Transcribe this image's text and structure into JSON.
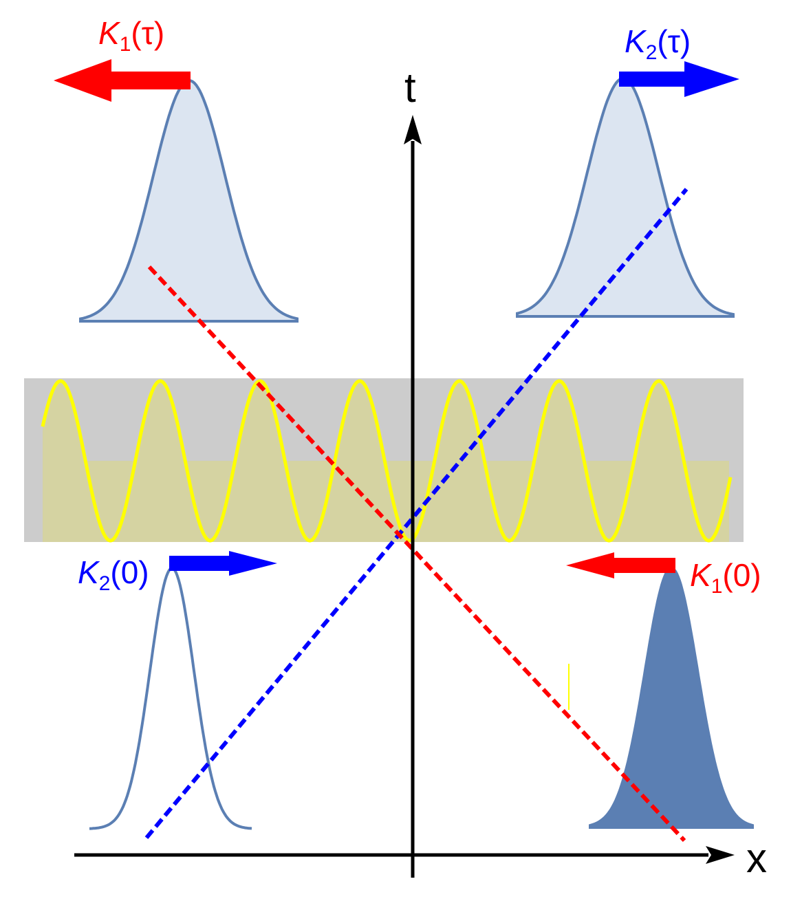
{
  "axes": {
    "x_label": "x",
    "t_label": "t"
  },
  "labels": {
    "k1_tau": {
      "sym": "K",
      "sub": "1",
      "arg": "(τ)"
    },
    "k2_tau": {
      "sym": "K",
      "sub": "2",
      "arg": "(τ)"
    },
    "k2_zero": {
      "sym": "K",
      "sub": "2",
      "arg": "(0)"
    },
    "k1_zero": {
      "sym": "K",
      "sub": "1",
      "arg": "(0)"
    }
  },
  "colors": {
    "red": "#ff0000",
    "blue": "#0000ff",
    "pulse_line": "#5b7fb3",
    "pulse_fill_light": "#dce5f1",
    "pulse_fill_dark": "#5b7fb3",
    "band": "#cccccc",
    "wave": "#ffff00",
    "wave_fill": "#d6d49a",
    "axis": "#000000"
  }
}
